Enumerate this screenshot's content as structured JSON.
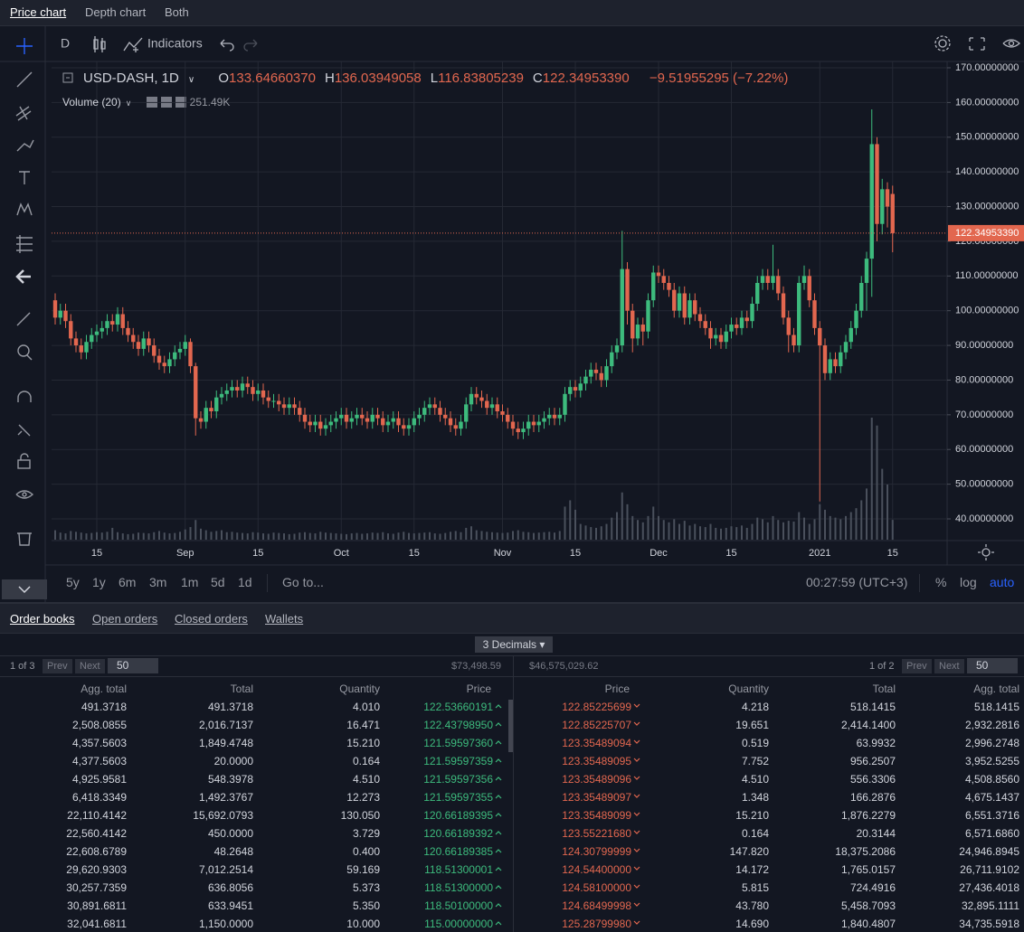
{
  "ui": {
    "tabs": [
      "Price chart",
      "Depth chart",
      "Both"
    ],
    "interval": "D",
    "indicators": "Indicators",
    "ranges": [
      "5y",
      "1y",
      "6m",
      "3m",
      "1m",
      "5d",
      "1d"
    ],
    "goto": "Go to...",
    "clock": "00:27:59 (UTC+3)",
    "scale_options": [
      "%",
      "log",
      "auto"
    ]
  },
  "legend": {
    "symbol": "USD-DASH, 1D",
    "ohlc": [
      {
        "key": "O",
        "value": "133.64660370"
      },
      {
        "key": "H",
        "value": "136.03949058"
      },
      {
        "key": "L",
        "value": "116.83805239"
      },
      {
        "key": "C",
        "value": "122.34953390"
      }
    ],
    "change": "−9.51955295 (−7.22%)",
    "volume_title": "Volume (20)",
    "volume_value": "251.49K"
  },
  "chart_data": {
    "type": "candlestick",
    "up_color": "#3dbb7d",
    "down_color": "#e2674f",
    "volume_color": "#4a505c",
    "grid": true,
    "ylim": [
      40,
      170
    ],
    "yticks": [
      {
        "value": 40,
        "label": "40.00000000"
      },
      {
        "value": 50,
        "label": "50.00000000"
      },
      {
        "value": 60,
        "label": "60.00000000"
      },
      {
        "value": 70,
        "label": "70.00000000"
      },
      {
        "value": 80,
        "label": "80.00000000"
      },
      {
        "value": 90,
        "label": "90.00000000"
      },
      {
        "value": 100,
        "label": "100.00000000"
      },
      {
        "value": 110,
        "label": "110.00000000"
      },
      {
        "value": 120,
        "label": "120.00000000"
      },
      {
        "value": 130,
        "label": "130.00000000"
      },
      {
        "value": 140,
        "label": "140.00000000"
      },
      {
        "value": 150,
        "label": "150.00000000"
      },
      {
        "value": 160,
        "label": "160.00000000"
      },
      {
        "value": 170,
        "label": "170.00000000"
      }
    ],
    "xticks": [
      {
        "value": 8,
        "label": "15"
      },
      {
        "value": 25,
        "label": "Sep"
      },
      {
        "value": 39,
        "label": "15"
      },
      {
        "value": 55,
        "label": "Oct"
      },
      {
        "value": 69,
        "label": "15"
      },
      {
        "value": 86,
        "label": "Nov"
      },
      {
        "value": 100,
        "label": "15"
      },
      {
        "value": 116,
        "label": "Dec"
      },
      {
        "value": 130,
        "label": "15"
      },
      {
        "value": 147,
        "label": "2021"
      },
      {
        "value": 161,
        "label": "15"
      }
    ],
    "last_price": {
      "value": 122.3495339,
      "label": "122.34953390"
    },
    "open": [
      103,
      98,
      100,
      97,
      92,
      90,
      88,
      91,
      93,
      94,
      95,
      97,
      96,
      99,
      95,
      93,
      91,
      89,
      92,
      90,
      87,
      85,
      84,
      86,
      88,
      89,
      91,
      84,
      69,
      68,
      72,
      71,
      75,
      76,
      77,
      78,
      77,
      79,
      78,
      76,
      77,
      75,
      74,
      74,
      73,
      72,
      73,
      72,
      70,
      68,
      67,
      68,
      66,
      67,
      68,
      69,
      70,
      68,
      69,
      70,
      69,
      68,
      70,
      69,
      67,
      68,
      69,
      67,
      66,
      67,
      69,
      70,
      72,
      73,
      72,
      70,
      69,
      67,
      66,
      68,
      73,
      76,
      75,
      74,
      72,
      73,
      71,
      70,
      68,
      66,
      65,
      66,
      68,
      67,
      68,
      69,
      70,
      69,
      70,
      76,
      78,
      77,
      79,
      81,
      83,
      82,
      80,
      84,
      88,
      90,
      112,
      100,
      92,
      96,
      94,
      103,
      111,
      110,
      108,
      106,
      100,
      105,
      98,
      103,
      99,
      97,
      95,
      92,
      93,
      91,
      94,
      96,
      95,
      98,
      97,
      102,
      108,
      110,
      108,
      110,
      105,
      98,
      93,
      90,
      108,
      110,
      103,
      95,
      90,
      82,
      86,
      84,
      88,
      91,
      95,
      100,
      108,
      115,
      148,
      125,
      135,
      133.6466037
    ],
    "high": [
      105,
      102,
      102,
      99,
      94,
      92,
      93,
      95,
      96,
      97,
      99,
      99,
      101,
      101,
      97,
      95,
      93,
      94,
      94,
      92,
      89,
      87,
      88,
      90,
      91,
      93,
      92,
      85,
      71,
      74,
      74,
      77,
      78,
      79,
      80,
      80,
      81,
      81,
      80,
      79,
      79,
      77,
      76,
      76,
      75,
      75,
      75,
      74,
      72,
      70,
      70,
      70,
      69,
      70,
      71,
      72,
      72,
      71,
      72,
      72,
      71,
      72,
      72,
      71,
      70,
      71,
      71,
      69,
      69,
      71,
      72,
      74,
      75,
      75,
      74,
      72,
      71,
      69,
      70,
      75,
      78,
      78,
      77,
      76,
      75,
      75,
      73,
      72,
      70,
      68,
      68,
      70,
      70,
      70,
      71,
      72,
      72,
      72,
      78,
      80,
      80,
      81,
      83,
      85,
      85,
      84,
      86,
      90,
      92,
      123,
      114,
      102,
      98,
      98,
      105,
      113,
      113,
      112,
      110,
      108,
      107,
      107,
      105,
      105,
      101,
      99,
      97,
      95,
      95,
      96,
      98,
      98,
      100,
      100,
      104,
      110,
      112,
      112,
      119,
      112,
      107,
      100,
      95,
      110,
      113,
      112,
      105,
      97,
      92,
      88,
      88,
      90,
      93,
      97,
      102,
      110,
      117,
      158,
      150,
      138,
      137,
      136.03949058
    ],
    "low": [
      96,
      96,
      95,
      90,
      88,
      86,
      86,
      89,
      91,
      92,
      93,
      94,
      94,
      93,
      91,
      89,
      87,
      87,
      88,
      85,
      83,
      82,
      82,
      84,
      86,
      87,
      82,
      64,
      66,
      66,
      69,
      69,
      73,
      74,
      75,
      75,
      75,
      76,
      74,
      74,
      73,
      72,
      72,
      71,
      70,
      70,
      70,
      68,
      66,
      65,
      65,
      64,
      64,
      65,
      66,
      67,
      66,
      66,
      67,
      67,
      66,
      66,
      67,
      65,
      65,
      66,
      65,
      64,
      64,
      65,
      67,
      68,
      70,
      70,
      68,
      67,
      65,
      64,
      64,
      66,
      71,
      73,
      72,
      70,
      70,
      69,
      68,
      66,
      64,
      63,
      63,
      64,
      65,
      65,
      66,
      67,
      67,
      67,
      68,
      74,
      75,
      75,
      77,
      79,
      80,
      78,
      78,
      82,
      86,
      88,
      96,
      88,
      90,
      90,
      92,
      101,
      108,
      106,
      104,
      98,
      98,
      96,
      96,
      97,
      95,
      93,
      89,
      90,
      89,
      89,
      92,
      93,
      93,
      95,
      95,
      100,
      106,
      106,
      106,
      103,
      96,
      88,
      88,
      88,
      106,
      101,
      93,
      45,
      80,
      80,
      82,
      82,
      86,
      89,
      93,
      98,
      100,
      104,
      120,
      122,
      124,
      116.83805239
    ],
    "close": [
      98,
      100,
      97,
      92,
      90,
      88,
      91,
      93,
      94,
      95,
      97,
      96,
      99,
      95,
      93,
      91,
      89,
      92,
      90,
      87,
      85,
      84,
      86,
      88,
      89,
      91,
      84,
      69,
      68,
      72,
      71,
      75,
      76,
      77,
      78,
      77,
      79,
      78,
      76,
      77,
      75,
      74,
      74,
      73,
      72,
      73,
      72,
      70,
      68,
      67,
      68,
      66,
      67,
      68,
      69,
      70,
      68,
      69,
      70,
      69,
      68,
      70,
      69,
      67,
      68,
      69,
      67,
      66,
      67,
      69,
      70,
      72,
      73,
      72,
      70,
      69,
      67,
      66,
      68,
      73,
      76,
      75,
      74,
      72,
      73,
      71,
      70,
      68,
      66,
      65,
      66,
      68,
      67,
      68,
      69,
      70,
      69,
      70,
      76,
      78,
      77,
      79,
      81,
      83,
      82,
      80,
      84,
      88,
      90,
      112,
      100,
      92,
      96,
      94,
      103,
      111,
      110,
      108,
      106,
      100,
      105,
      98,
      103,
      99,
      97,
      95,
      92,
      93,
      91,
      94,
      96,
      95,
      98,
      97,
      102,
      108,
      110,
      108,
      110,
      105,
      98,
      93,
      90,
      108,
      110,
      103,
      95,
      90,
      82,
      86,
      84,
      88,
      91,
      95,
      100,
      108,
      115,
      148,
      125,
      135,
      130,
      122.3495339
    ],
    "volume": [
      120,
      90,
      80,
      110,
      100,
      90,
      80,
      85,
      95,
      90,
      100,
      150,
      95,
      80,
      70,
      75,
      90,
      85,
      80,
      95,
      110,
      90,
      80,
      85,
      100,
      130,
      160,
      250,
      140,
      120,
      100,
      110,
      120,
      95,
      100,
      90,
      85,
      80,
      95,
      90,
      80,
      75,
      90,
      85,
      80,
      70,
      75,
      90,
      95,
      85,
      80,
      100,
      90,
      85,
      80,
      75,
      70,
      80,
      85,
      75,
      80,
      90,
      85,
      95,
      80,
      75,
      90,
      100,
      85,
      80,
      85,
      90,
      95,
      80,
      75,
      85,
      100,
      110,
      95,
      150,
      170,
      120,
      110,
      100,
      95,
      90,
      85,
      90,
      110,
      120,
      100,
      95,
      85,
      90,
      95,
      100,
      90,
      110,
      420,
      500,
      380,
      200,
      180,
      160,
      150,
      170,
      200,
      280,
      350,
      600,
      450,
      300,
      250,
      220,
      300,
      420,
      300,
      250,
      220,
      260,
      200,
      240,
      180,
      200,
      170,
      160,
      200,
      150,
      140,
      150,
      170,
      160,
      180,
      150,
      200,
      280,
      260,
      220,
      300,
      250,
      220,
      240,
      230,
      350,
      280,
      200,
      260,
      450,
      380,
      300,
      280,
      260,
      300,
      350,
      400,
      500,
      650,
      1550,
      1450,
      900,
      700,
      251.49
    ]
  },
  "order_books": {
    "tabs": [
      "Order books",
      "Open orders",
      "Closed orders",
      "Wallets"
    ],
    "decimals": "3 Decimals",
    "bids": {
      "pager": "1 of 3",
      "prev": "Prev",
      "next": "Next",
      "size": "50",
      "sum": "$73,498.59",
      "columns": [
        "Agg. total",
        "Total",
        "Quantity",
        "Price"
      ],
      "rows": [
        [
          "491.3718",
          "491.3718",
          "4.010",
          "122.53660191"
        ],
        [
          "2,508.0855",
          "2,016.7137",
          "16.471",
          "122.43798950"
        ],
        [
          "4,357.5603",
          "1,849.4748",
          "15.210",
          "121.59597360"
        ],
        [
          "4,377.5603",
          "20.0000",
          "0.164",
          "121.59597359"
        ],
        [
          "4,925.9581",
          "548.3978",
          "4.510",
          "121.59597356"
        ],
        [
          "6,418.3349",
          "1,492.3767",
          "12.273",
          "121.59597355"
        ],
        [
          "22,110.4142",
          "15,692.0793",
          "130.050",
          "120.66189395"
        ],
        [
          "22,560.4142",
          "450.0000",
          "3.729",
          "120.66189392"
        ],
        [
          "22,608.6789",
          "48.2648",
          "0.400",
          "120.66189385"
        ],
        [
          "29,620.9303",
          "7,012.2514",
          "59.169",
          "118.51300001"
        ],
        [
          "30,257.7359",
          "636.8056",
          "5.373",
          "118.51300000"
        ],
        [
          "30,891.6811",
          "633.9451",
          "5.350",
          "118.50100000"
        ],
        [
          "32,041.6811",
          "1,150.0000",
          "10.000",
          "115.00000000"
        ]
      ]
    },
    "asks": {
      "pager": "1 of 2",
      "prev": "Prev",
      "next": "Next",
      "size": "50",
      "sum": "$46,575,029.62",
      "columns": [
        "Price",
        "Quantity",
        "Total",
        "Agg. total"
      ],
      "rows": [
        [
          "122.85225699",
          "4.218",
          "518.1415",
          "518.1415"
        ],
        [
          "122.85225707",
          "19.651",
          "2,414.1400",
          "2,932.2816"
        ],
        [
          "123.35489094",
          "0.519",
          "63.9932",
          "2,996.2748"
        ],
        [
          "123.35489095",
          "7.752",
          "956.2507",
          "3,952.5255"
        ],
        [
          "123.35489096",
          "4.510",
          "556.3306",
          "4,508.8560"
        ],
        [
          "123.35489097",
          "1.348",
          "166.2876",
          "4,675.1437"
        ],
        [
          "123.35489099",
          "15.210",
          "1,876.2279",
          "6,551.3716"
        ],
        [
          "123.55221680",
          "0.164",
          "20.3144",
          "6,571.6860"
        ],
        [
          "124.30799999",
          "147.820",
          "18,375.2086",
          "24,946.8945"
        ],
        [
          "124.54400000",
          "14.172",
          "1,765.0157",
          "26,711.9102"
        ],
        [
          "124.58100000",
          "5.815",
          "724.4916",
          "27,436.4018"
        ],
        [
          "124.68499998",
          "43.780",
          "5,458.7093",
          "32,895.1111"
        ],
        [
          "125.28799980",
          "14.690",
          "1,840.4807",
          "34,735.5918"
        ]
      ]
    }
  }
}
